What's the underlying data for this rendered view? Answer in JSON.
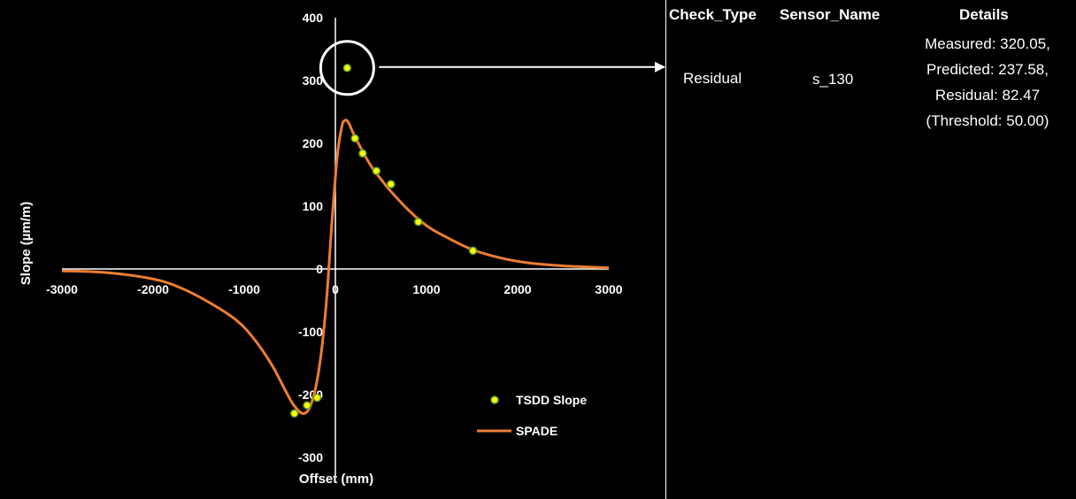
{
  "colors": {
    "background": "#000000",
    "foreground": "#ffffff",
    "spade_line": "#ED7D31",
    "tsdd_marker_fill": "#FFFF00",
    "tsdd_marker_edge": "#5B9B3B",
    "highlight": "#ffffff"
  },
  "chart_data": {
    "type": "scatter",
    "title": "",
    "xlabel": "Offset (mm)",
    "ylabel": "Slope (µm/m)",
    "xlim": [
      -3000,
      3000
    ],
    "ylim": [
      -300,
      400
    ],
    "x_ticks": [
      -3000,
      -2000,
      -1000,
      0,
      1000,
      2000,
      3000
    ],
    "y_ticks": [
      -300,
      -200,
      -100,
      0,
      100,
      200,
      300,
      400
    ],
    "x_tick_labels": [
      "-3000",
      "-2000",
      "-1000",
      "0",
      "1000",
      "2000",
      "3000"
    ],
    "y_tick_labels": [
      "-300",
      "-200",
      "-100",
      "0",
      "100",
      "200",
      "300",
      "400"
    ],
    "grid": false,
    "legend_position": "bottom-right",
    "series": [
      {
        "name": "TSDD Slope",
        "kind": "scatter",
        "points": [
          {
            "x": -450,
            "y": -230
          },
          {
            "x": -310,
            "y": -217
          },
          {
            "x": -200,
            "y": -205
          },
          {
            "x": 130,
            "y": 320
          },
          {
            "x": 215,
            "y": 208
          },
          {
            "x": 300,
            "y": 184
          },
          {
            "x": 450,
            "y": 156
          },
          {
            "x": 610,
            "y": 135
          },
          {
            "x": 910,
            "y": 75
          },
          {
            "x": 1510,
            "y": 29
          }
        ]
      },
      {
        "name": "SPADE",
        "kind": "line",
        "points": [
          {
            "x": -3000,
            "y": -3
          },
          {
            "x": -2500,
            "y": -6
          },
          {
            "x": -2000,
            "y": -16
          },
          {
            "x": -1700,
            "y": -30
          },
          {
            "x": -1400,
            "y": -52
          },
          {
            "x": -1100,
            "y": -80
          },
          {
            "x": -900,
            "y": -110
          },
          {
            "x": -700,
            "y": -152
          },
          {
            "x": -550,
            "y": -193
          },
          {
            "x": -450,
            "y": -218
          },
          {
            "x": -340,
            "y": -230
          },
          {
            "x": -250,
            "y": -208
          },
          {
            "x": -170,
            "y": -150
          },
          {
            "x": -100,
            "y": -55
          },
          {
            "x": -40,
            "y": 70
          },
          {
            "x": 20,
            "y": 178
          },
          {
            "x": 70,
            "y": 226
          },
          {
            "x": 100,
            "y": 236
          },
          {
            "x": 140,
            "y": 234
          },
          {
            "x": 200,
            "y": 215
          },
          {
            "x": 300,
            "y": 187
          },
          {
            "x": 400,
            "y": 162
          },
          {
            "x": 500,
            "y": 143
          },
          {
            "x": 600,
            "y": 125
          },
          {
            "x": 800,
            "y": 94
          },
          {
            "x": 1000,
            "y": 69
          },
          {
            "x": 1200,
            "y": 52
          },
          {
            "x": 1500,
            "y": 31
          },
          {
            "x": 1800,
            "y": 18
          },
          {
            "x": 2100,
            "y": 10
          },
          {
            "x": 2500,
            "y": 5
          },
          {
            "x": 3000,
            "y": 2
          }
        ]
      }
    ],
    "highlighted_point": {
      "x": 130,
      "y": 320
    }
  },
  "table": {
    "headers": [
      "Check_Type",
      "Sensor_Name",
      "Details"
    ],
    "rows": [
      {
        "check_type": "Residual",
        "sensor_name": "s_130",
        "details": [
          "Measured: 320.05,",
          "Predicted: 237.58,",
          "Residual: 82.47",
          "(Threshold: 50.00)"
        ]
      }
    ]
  }
}
